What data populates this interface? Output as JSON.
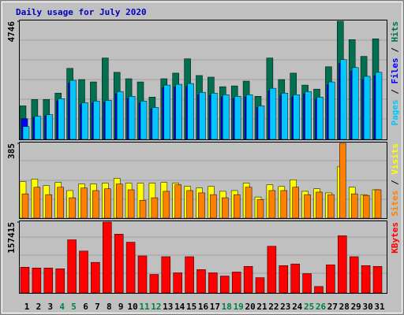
{
  "chart_data": [
    {
      "type": "bar",
      "title": "Daily usage for July 2020",
      "ylim": [
        0,
        4746
      ],
      "yticks": [
        4746
      ],
      "legend_separator": " / ",
      "series": [
        {
          "name": "Hits",
          "color": "#007050",
          "values": [
            1347,
            1603,
            1603,
            1860,
            2854,
            2405,
            2309,
            3271,
            2694,
            2437,
            2309,
            1700,
            2437,
            2662,
            3239,
            2566,
            2501,
            2117,
            2149,
            2341,
            1732,
            3271,
            2405,
            2662,
            2181,
            2020,
            2918,
            4746,
            4009,
            3335,
            4041
          ]
        },
        {
          "name": "Files",
          "color": "#0000ff",
          "values": [
            833,
            884,
            944,
            1554,
            2254,
            1401,
            1462,
            1492,
            1828,
            1645,
            1462,
            1219,
            2072,
            2102,
            2133,
            1797,
            1767,
            1706,
            1645,
            1706,
            1280,
            1949,
            1767,
            1706,
            1828,
            1615,
            2194,
            3047,
            2742,
            2407,
            2559
          ]
        },
        {
          "name": "Pages",
          "color": "#00c8ff",
          "values": [
            513,
            930,
            994,
            1636,
            2373,
            1475,
            1539,
            1571,
            1924,
            1732,
            1539,
            1283,
            2181,
            2213,
            2245,
            1892,
            1860,
            1796,
            1732,
            1796,
            1347,
            2052,
            1860,
            1796,
            1924,
            1700,
            2309,
            3207,
            2886,
            2534,
            2694
          ]
        }
      ]
    },
    {
      "type": "bar",
      "ylim": [
        0,
        385
      ],
      "yticks": [
        385
      ],
      "legend_separator": " / ",
      "series": [
        {
          "name": "Visits",
          "color": "#ffff00",
          "values": [
            188,
            201,
            167,
            184,
            142,
            176,
            176,
            180,
            205,
            180,
            180,
            180,
            184,
            180,
            163,
            155,
            163,
            138,
            142,
            180,
            109,
            172,
            163,
            197,
            138,
            151,
            130,
            264,
            159,
            121,
            146
          ]
        },
        {
          "name": "Sites",
          "color": "#ff8000",
          "values": [
            125,
            159,
            121,
            159,
            105,
            155,
            142,
            151,
            176,
            146,
            92,
            105,
            138,
            172,
            142,
            130,
            121,
            105,
            121,
            159,
            96,
            142,
            142,
            159,
            121,
            134,
            121,
            385,
            125,
            117,
            146
          ]
        }
      ]
    },
    {
      "type": "bar",
      "ylim": [
        0,
        157415
      ],
      "yticks": [
        157415
      ],
      "series": [
        {
          "name": "KBytes",
          "color": "#ff0000",
          "values": [
            57250,
            55460,
            55460,
            53670,
            118070,
            93030,
            67980,
            157415,
            130600,
            112710,
            82290,
            41150,
            80500,
            44720,
            80500,
            51880,
            44720,
            37570,
            46510,
            59040,
            33990,
            103760,
            60830,
            64400,
            42930,
            14310,
            62610,
            127020,
            80500,
            60830,
            59040
          ]
        }
      ],
      "categories": [
        "1",
        "2",
        "3",
        "4",
        "5",
        "6",
        "7",
        "8",
        "9",
        "10",
        "11",
        "12",
        "13",
        "14",
        "15",
        "16",
        "17",
        "18",
        "19",
        "20",
        "21",
        "22",
        "23",
        "24",
        "25",
        "26",
        "27",
        "28",
        "29",
        "30",
        "31"
      ],
      "weekend_color": "#008040",
      "weekends": [
        3,
        4,
        10,
        11,
        17,
        18,
        24,
        25
      ]
    }
  ]
}
